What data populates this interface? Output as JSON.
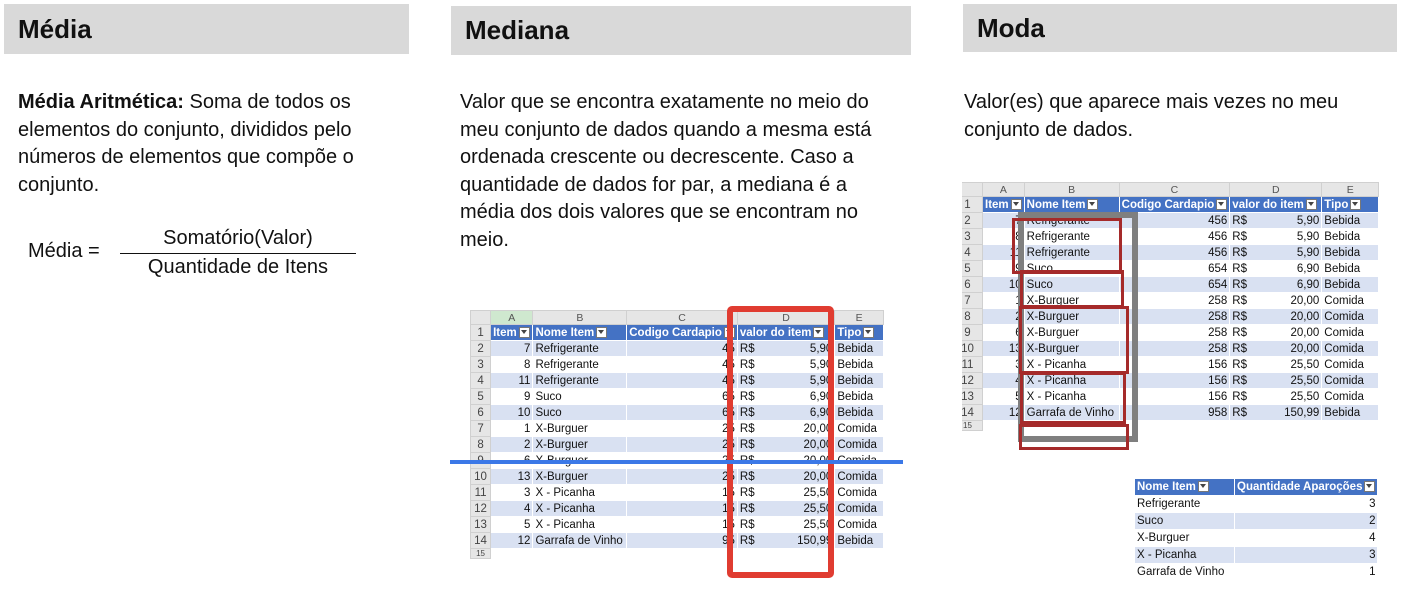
{
  "sections": {
    "media": {
      "title": "Média",
      "definition_bold": "Média Aritmética:",
      "definition_text": " Soma de todos os elementos do conjunto, divididos pelo números de elementos que compõe o conjunto.",
      "formula_label": "Média =",
      "formula_numerator": "Somatório(Valor)",
      "formula_denominator": "Quantidade de Itens"
    },
    "mediana": {
      "title": "Mediana",
      "text": "Valor que se encontra exatamente no meio do meu conjunto de dados quando a mesma está ordenada crescente ou decrescente. Caso a quantidade de dados for par, a mediana é a média dos dois valores que se encontram no meio."
    },
    "moda": {
      "title": "Moda",
      "text": "Valor(es) que aparece mais vezes no meu conjunto de dados."
    }
  },
  "mediana_sheet": {
    "col_letters": [
      "A",
      "B",
      "C",
      "D",
      "E"
    ],
    "headers": [
      "Item",
      "Nome Item",
      "Codigo Cardapio",
      "valor do item",
      "Tipo"
    ],
    "rows": [
      {
        "n": "2",
        "item": "7",
        "nome": "Refrigerante",
        "cod": "45",
        "cur": "R$",
        "val": "5,90",
        "tipo": "Bebida"
      },
      {
        "n": "3",
        "item": "8",
        "nome": "Refrigerante",
        "cod": "45",
        "cur": "R$",
        "val": "5,90",
        "tipo": "Bebida"
      },
      {
        "n": "4",
        "item": "11",
        "nome": "Refrigerante",
        "cod": "45",
        "cur": "R$",
        "val": "5,90",
        "tipo": "Bebida"
      },
      {
        "n": "5",
        "item": "9",
        "nome": "Suco",
        "cod": "65",
        "cur": "R$",
        "val": "6,90",
        "tipo": "Bebida"
      },
      {
        "n": "6",
        "item": "10",
        "nome": "Suco",
        "cod": "65",
        "cur": "R$",
        "val": "6,90",
        "tipo": "Bebida"
      },
      {
        "n": "7",
        "item": "1",
        "nome": "X-Burguer",
        "cod": "25",
        "cur": "R$",
        "val": "20,00",
        "tipo": "Comida"
      },
      {
        "n": "8",
        "item": "2",
        "nome": "X-Burguer",
        "cod": "25",
        "cur": "R$",
        "val": "20,00",
        "tipo": "Comida"
      },
      {
        "n": "9",
        "item": "6",
        "nome": "X-Burguer",
        "cod": "25",
        "cur": "R$",
        "val": "20,00",
        "tipo": "Comida"
      },
      {
        "n": "10",
        "item": "13",
        "nome": "X-Burguer",
        "cod": "25",
        "cur": "R$",
        "val": "20,00",
        "tipo": "Comida"
      },
      {
        "n": "11",
        "item": "3",
        "nome": "X - Picanha",
        "cod": "15",
        "cur": "R$",
        "val": "25,50",
        "tipo": "Comida"
      },
      {
        "n": "12",
        "item": "4",
        "nome": "X - Picanha",
        "cod": "15",
        "cur": "R$",
        "val": "25,50",
        "tipo": "Comida"
      },
      {
        "n": "13",
        "item": "5",
        "nome": "X - Picanha",
        "cod": "15",
        "cur": "R$",
        "val": "25,50",
        "tipo": "Comida"
      },
      {
        "n": "14",
        "item": "12",
        "nome": "Garrafa de Vinho",
        "cod": "95",
        "cur": "R$",
        "val": "150,99",
        "tipo": "Bebida"
      }
    ],
    "last_row_number": "15"
  },
  "moda_sheet": {
    "col_letters": [
      "A",
      "B",
      "C",
      "D",
      "E"
    ],
    "headers": [
      "Item",
      "Nome Item",
      "Codigo Cardapio",
      "valor do item",
      "Tipo"
    ],
    "rows": [
      {
        "n": "2",
        "item": "7",
        "nome": "Refrigerante",
        "cod": "456",
        "cur": "R$",
        "val": "5,90",
        "tipo": "Bebida"
      },
      {
        "n": "3",
        "item": "8",
        "nome": "Refrigerante",
        "cod": "456",
        "cur": "R$",
        "val": "5,90",
        "tipo": "Bebida"
      },
      {
        "n": "4",
        "item": "11",
        "nome": "Refrigerante",
        "cod": "456",
        "cur": "R$",
        "val": "5,90",
        "tipo": "Bebida"
      },
      {
        "n": "5",
        "item": "9",
        "nome": "Suco",
        "cod": "654",
        "cur": "R$",
        "val": "6,90",
        "tipo": "Bebida"
      },
      {
        "n": "6",
        "item": "10",
        "nome": "Suco",
        "cod": "654",
        "cur": "R$",
        "val": "6,90",
        "tipo": "Bebida"
      },
      {
        "n": "7",
        "item": "1",
        "nome": "X-Burguer",
        "cod": "258",
        "cur": "R$",
        "val": "20,00",
        "tipo": "Comida"
      },
      {
        "n": "8",
        "item": "2",
        "nome": "X-Burguer",
        "cod": "258",
        "cur": "R$",
        "val": "20,00",
        "tipo": "Comida"
      },
      {
        "n": "9",
        "item": "6",
        "nome": "X-Burguer",
        "cod": "258",
        "cur": "R$",
        "val": "20,00",
        "tipo": "Comida"
      },
      {
        "n": "10",
        "item": "13",
        "nome": "X-Burguer",
        "cod": "258",
        "cur": "R$",
        "val": "20,00",
        "tipo": "Comida"
      },
      {
        "n": "11",
        "item": "3",
        "nome": "X - Picanha",
        "cod": "156",
        "cur": "R$",
        "val": "25,50",
        "tipo": "Comida"
      },
      {
        "n": "12",
        "item": "4",
        "nome": "X - Picanha",
        "cod": "156",
        "cur": "R$",
        "val": "25,50",
        "tipo": "Comida"
      },
      {
        "n": "13",
        "item": "5",
        "nome": "X - Picanha",
        "cod": "156",
        "cur": "R$",
        "val": "25,50",
        "tipo": "Comida"
      },
      {
        "n": "14",
        "item": "12",
        "nome": "Garrafa de Vinho",
        "cod": "958",
        "cur": "R$",
        "val": "150,99",
        "tipo": "Bebida"
      }
    ],
    "last_row_number": "15"
  },
  "moda_summary": {
    "headers": [
      "Nome Item",
      "Quantidade Aparoções"
    ],
    "rows": [
      {
        "nome": "Refrigerante",
        "qtd": "3"
      },
      {
        "nome": "Suco",
        "qtd": "2"
      },
      {
        "nome": "X-Burguer",
        "qtd": "4"
      },
      {
        "nome": "X - Picanha",
        "qtd": "3"
      },
      {
        "nome": "Garrafa de Vinho",
        "qtd": "1"
      }
    ]
  },
  "colors": {
    "header_gray": "#d9d9d9",
    "table_header_blue": "#4472c4",
    "band_blue": "#d9e1f2",
    "median_highlight_red": "#e03c31",
    "median_line_blue": "#3b78e7",
    "mode_group_red": "#a52a2a",
    "mode_group_gray": "#7f7f7f"
  }
}
